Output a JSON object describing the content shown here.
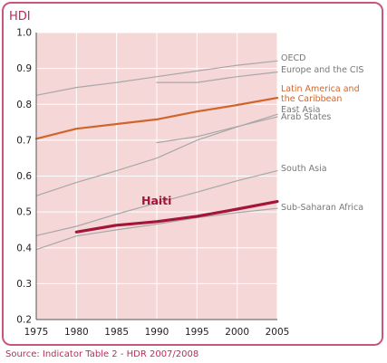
{
  "colors": {
    "frame": "#c8587a",
    "plot_bg": "#f5d7d7",
    "grid": "#ffffff",
    "grey_line": "#a7a7a7",
    "orange": "#d0652c",
    "haiti": "#a51538",
    "axis_text": "#222222",
    "label_grey": "#777777",
    "source": "#c02a55"
  },
  "source_text": "Source: Indicator Table 2 - HDR 2007/2008",
  "chart_data": {
    "type": "line",
    "title": "HDI",
    "xlabel": "",
    "ylabel": "",
    "xlim": [
      1975,
      2005
    ],
    "ylim": [
      0.2,
      1.0
    ],
    "xticks": [
      1975,
      1980,
      1985,
      1990,
      1995,
      2000,
      2005
    ],
    "yticks": [
      0.2,
      0.3,
      0.4,
      0.5,
      0.6,
      0.7,
      0.8,
      0.9,
      1.0
    ],
    "ytick_labels": [
      "0.2",
      "0.3",
      "0.4",
      "0.5",
      "0.6",
      "0.7",
      "0.8",
      "0.9",
      "1.0"
    ],
    "grid": true,
    "series": [
      {
        "name": "OECD",
        "style": "grey",
        "x": [
          1975,
          1980,
          1985,
          1990,
          1995,
          2000,
          2005
        ],
        "y": [
          0.825,
          0.847,
          0.861,
          0.877,
          0.893,
          0.909,
          0.921
        ]
      },
      {
        "name": "Europe and the CIS",
        "style": "grey",
        "x": [
          1990,
          1995,
          2000,
          2005
        ],
        "y": [
          0.861,
          0.861,
          0.877,
          0.89
        ]
      },
      {
        "name": "Latin America and the Caribbean",
        "style": "orange",
        "x": [
          1975,
          1980,
          1985,
          1990,
          1995,
          2000,
          2005
        ],
        "y": [
          0.704,
          0.732,
          0.745,
          0.758,
          0.78,
          0.798,
          0.818
        ]
      },
      {
        "name": "East Asia",
        "style": "grey",
        "x": [
          1975,
          1980,
          1985,
          1990,
          1995,
          2000,
          2005
        ],
        "y": [
          0.545,
          0.582,
          0.615,
          0.65,
          0.7,
          0.737,
          0.772
        ]
      },
      {
        "name": "Arab States",
        "style": "grey",
        "x": [
          1990,
          1995,
          2000,
          2005
        ],
        "y": [
          0.693,
          0.71,
          0.738,
          0.765
        ]
      },
      {
        "name": "South Asia",
        "style": "grey",
        "x": [
          1975,
          1980,
          1985,
          1990,
          1995,
          2000,
          2005
        ],
        "y": [
          0.434,
          0.46,
          0.494,
          0.525,
          0.555,
          0.587,
          0.615
        ]
      },
      {
        "name": "Sub-Saharan Africa",
        "style": "grey",
        "x": [
          1975,
          1980,
          1985,
          1990,
          1995,
          2000,
          2005
        ],
        "y": [
          0.395,
          0.433,
          0.45,
          0.466,
          0.484,
          0.498,
          0.51
        ]
      },
      {
        "name": "Haiti",
        "style": "haiti",
        "x": [
          1980,
          1985,
          1990,
          1995,
          2000,
          2005
        ],
        "y": [
          0.444,
          0.463,
          0.473,
          0.488,
          0.508,
          0.529
        ]
      }
    ],
    "labels": [
      {
        "text": "OECD",
        "series": "OECD"
      },
      {
        "text": "Europe and the CIS",
        "series": "Europe and the CIS"
      },
      {
        "text": "Latin America and",
        "series": "Latin America and the Caribbean"
      },
      {
        "text": "the Caribbean",
        "series": "Latin America and the Caribbean"
      },
      {
        "text": "East Asia",
        "series": "East Asia"
      },
      {
        "text": "Arab States",
        "series": "Arab States"
      },
      {
        "text": "South Asia",
        "series": "South Asia"
      },
      {
        "text": "Sub-Saharan Africa",
        "series": "Sub-Saharan Africa"
      },
      {
        "text": "Haiti",
        "series": "Haiti"
      }
    ]
  }
}
